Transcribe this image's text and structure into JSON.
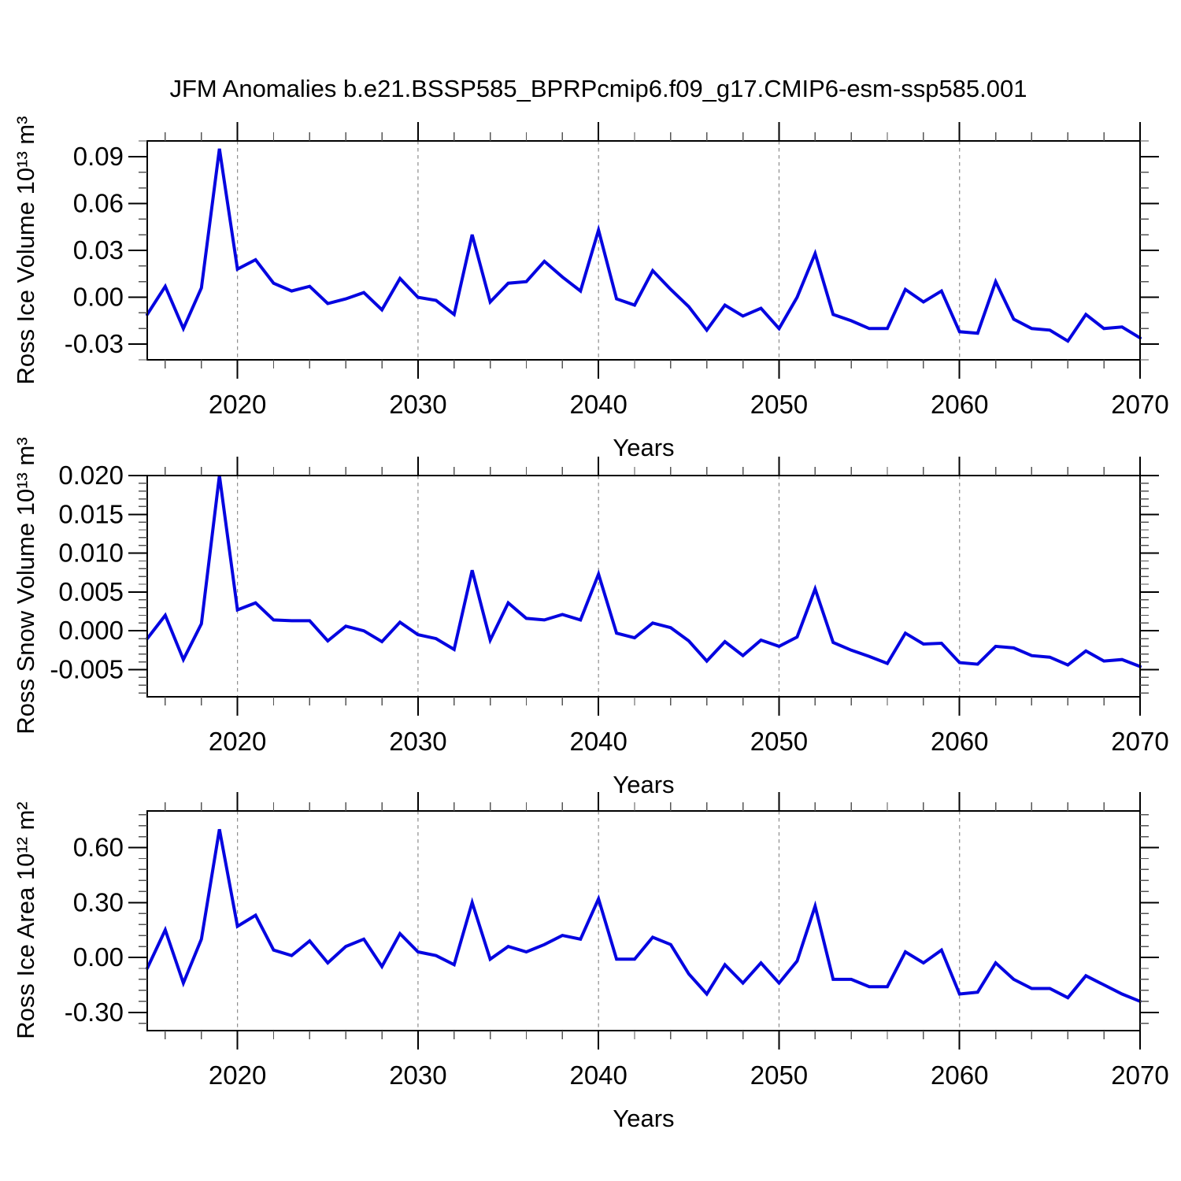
{
  "title": "JFM Anomalies b.e21.BSSP585_BPRPcmip6.f09_g17.CMIP6-esm-ssp585.001",
  "line_color": "#0505e0",
  "years": [
    2015,
    2016,
    2017,
    2018,
    2019,
    2020,
    2021,
    2022,
    2023,
    2024,
    2025,
    2026,
    2027,
    2028,
    2029,
    2030,
    2031,
    2032,
    2033,
    2034,
    2035,
    2036,
    2037,
    2038,
    2039,
    2040,
    2041,
    2042,
    2043,
    2044,
    2045,
    2046,
    2047,
    2048,
    2049,
    2050,
    2051,
    2052,
    2053,
    2054,
    2055,
    2056,
    2057,
    2058,
    2059,
    2060,
    2061,
    2062,
    2063,
    2064,
    2065,
    2066,
    2067,
    2068,
    2069,
    2070
  ],
  "chart_data": [
    {
      "type": "line",
      "ylabel": "Ross Ice Volume 10¹³ m³",
      "xlabel": "Years",
      "xlim": [
        2015,
        2070
      ],
      "ylim": [
        -0.04,
        0.1
      ],
      "xticks_major": [
        2020,
        2030,
        2040,
        2050,
        2060,
        2070
      ],
      "xtick_minor_step": 2,
      "gridlines_x": [
        2020,
        2030,
        2040,
        2050,
        2060
      ],
      "yticks_major": [
        -0.03,
        0.0,
        0.03,
        0.06,
        0.09
      ],
      "ytick_minor_step": 0.01,
      "ytick_decimals": 2,
      "grid": "x-dashed",
      "legend": "none",
      "series": [
        {
          "name": "Ross Ice Volume anomaly",
          "values": [
            -0.011,
            0.007,
            -0.02,
            0.006,
            0.095,
            0.018,
            0.024,
            0.009,
            0.004,
            0.007,
            -0.004,
            -0.001,
            0.003,
            -0.008,
            0.012,
            0.0,
            -0.002,
            -0.011,
            0.04,
            -0.003,
            0.009,
            0.01,
            0.023,
            0.013,
            0.004,
            0.043,
            -0.001,
            -0.005,
            0.017,
            0.005,
            -0.006,
            -0.021,
            -0.005,
            -0.012,
            -0.007,
            -0.02,
            0.0,
            0.028,
            -0.011,
            -0.015,
            -0.02,
            -0.02,
            0.005,
            -0.003,
            0.004,
            -0.022,
            -0.023,
            0.01,
            -0.014,
            -0.02,
            -0.021,
            -0.028,
            -0.011,
            -0.02,
            -0.019,
            -0.026
          ]
        }
      ]
    },
    {
      "type": "line",
      "ylabel": "Ross Snow Volume 10¹³ m³",
      "xlabel": "Years",
      "xlim": [
        2015,
        2070
      ],
      "ylim": [
        -0.0085,
        0.02
      ],
      "xticks_major": [
        2020,
        2030,
        2040,
        2050,
        2060,
        2070
      ],
      "xtick_minor_step": 2,
      "gridlines_x": [
        2020,
        2030,
        2040,
        2050,
        2060
      ],
      "yticks_major": [
        -0.005,
        0.0,
        0.005,
        0.01,
        0.015,
        0.02
      ],
      "ytick_minor_step": 0.001,
      "ytick_decimals": 3,
      "grid": "x-dashed",
      "legend": "none",
      "series": [
        {
          "name": "Ross Snow Volume anomaly",
          "values": [
            -0.001,
            0.002,
            -0.0037,
            0.0009,
            0.02,
            0.0027,
            0.0036,
            0.0014,
            0.0013,
            0.0013,
            -0.0013,
            0.0006,
            0.0,
            -0.0014,
            0.0011,
            -0.0005,
            -0.001,
            -0.0024,
            0.0078,
            -0.0012,
            0.0036,
            0.0016,
            0.0014,
            0.0021,
            0.0014,
            0.0073,
            -0.0003,
            -0.0009,
            0.001,
            0.0004,
            -0.0013,
            -0.0039,
            -0.0014,
            -0.0032,
            -0.0012,
            -0.002,
            -0.0008,
            0.0054,
            -0.0015,
            -0.0025,
            -0.0033,
            -0.0042,
            -0.0003,
            -0.0017,
            -0.0016,
            -0.0041,
            -0.0043,
            -0.002,
            -0.0022,
            -0.0032,
            -0.0034,
            -0.0044,
            -0.0026,
            -0.0039,
            -0.0037,
            -0.0046
          ]
        }
      ]
    },
    {
      "type": "line",
      "ylabel": "Ross Ice Area 10¹² m²",
      "xlabel": "Years",
      "xlim": [
        2015,
        2070
      ],
      "ylim": [
        -0.4,
        0.8
      ],
      "xticks_major": [
        2020,
        2030,
        2040,
        2050,
        2060,
        2070
      ],
      "xtick_minor_step": 2,
      "gridlines_x": [
        2020,
        2030,
        2040,
        2050,
        2060
      ],
      "yticks_major": [
        -0.3,
        0.0,
        0.3,
        0.6
      ],
      "ytick_minor_step": 0.06,
      "ytick_decimals": 2,
      "grid": "x-dashed",
      "legend": "none",
      "series": [
        {
          "name": "Ross Ice Area anomaly",
          "values": [
            -0.06,
            0.15,
            -0.14,
            0.1,
            0.7,
            0.17,
            0.23,
            0.04,
            0.01,
            0.09,
            -0.03,
            0.06,
            0.1,
            -0.05,
            0.13,
            0.03,
            0.01,
            -0.04,
            0.3,
            -0.01,
            0.06,
            0.03,
            0.07,
            0.12,
            0.1,
            0.32,
            -0.01,
            -0.01,
            0.11,
            0.07,
            -0.09,
            -0.2,
            -0.04,
            -0.14,
            -0.03,
            -0.14,
            -0.02,
            0.28,
            -0.12,
            -0.12,
            -0.16,
            -0.16,
            0.03,
            -0.03,
            0.04,
            -0.2,
            -0.19,
            -0.03,
            -0.12,
            -0.17,
            -0.17,
            -0.22,
            -0.1,
            -0.15,
            -0.2,
            -0.24
          ]
        }
      ]
    }
  ]
}
